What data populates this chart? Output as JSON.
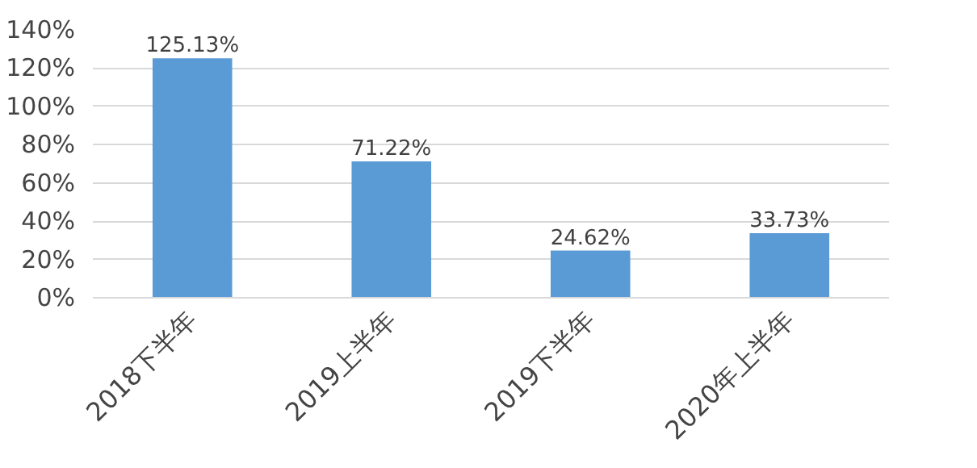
{
  "chart_data": {
    "type": "bar",
    "categories": [
      "2018下半年",
      "2019上半年",
      "2019下半年",
      "2020年上半年"
    ],
    "values": [
      125.13,
      71.22,
      24.62,
      33.73
    ],
    "value_labels": [
      "125.13%",
      "71.22%",
      "24.62%",
      "33.73%"
    ],
    "color": "#5b9bd5",
    "ylim": [
      0,
      140
    ],
    "yticks": [
      {
        "value": 0,
        "label": "0%"
      },
      {
        "value": 20,
        "label": "20%"
      },
      {
        "value": 40,
        "label": "40%"
      },
      {
        "value": 60,
        "label": "60%"
      },
      {
        "value": 80,
        "label": "80%"
      },
      {
        "value": 100,
        "label": "100%"
      },
      {
        "value": 120,
        "label": "120%"
      },
      {
        "value": 140,
        "label": "140%"
      }
    ],
    "grid": "y"
  }
}
